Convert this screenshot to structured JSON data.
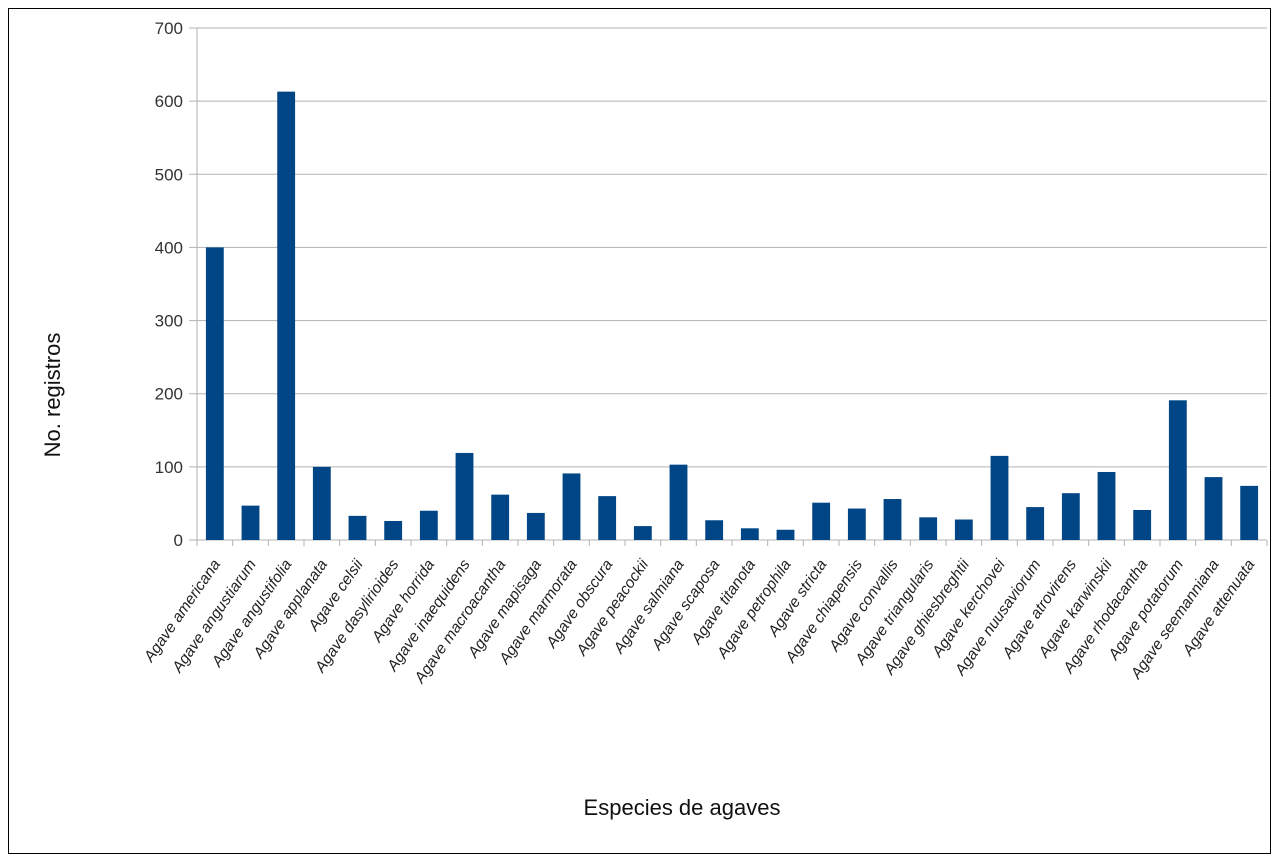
{
  "chart_data": {
    "type": "bar",
    "title": "",
    "xlabel": "Especies de agaves",
    "ylabel": "No. registros",
    "ylim": [
      0,
      700
    ],
    "yticks": [
      0,
      100,
      200,
      300,
      400,
      500,
      600,
      700
    ],
    "grid": true,
    "legend": "none",
    "bar_color": "#004586",
    "categories": [
      "Agave americana",
      "Agave angustiarum",
      "Agave angustifolia",
      "Agave applanata",
      "Agave celsii",
      "Agave dasylirioides",
      "Agave horrida",
      "Agave inaequidens",
      "Agave macroacantha",
      "Agave mapisaga",
      "Agave marmorata",
      "Agave obscura",
      "Agave peacockii",
      "Agave salmiana",
      "Agave scaposa",
      "Agave titanota",
      "Agave petrophila",
      "Agave stricta",
      "Agave chiapensis",
      "Agave convallis",
      "Agave triangularis",
      "Agave ghiesbreghtii",
      "Agave kerchovei",
      "Agave nuusaviorum",
      "Agave atrovirens",
      "Agave karwinskii",
      "Agave rhodacantha",
      "Agave potatorum",
      "Agave seemanniana",
      "Agave attenuata"
    ],
    "values": [
      400,
      47,
      613,
      100,
      33,
      26,
      40,
      119,
      62,
      37,
      91,
      60,
      19,
      103,
      27,
      16,
      14,
      51,
      43,
      56,
      31,
      28,
      115,
      45,
      64,
      93,
      41,
      191,
      86,
      74
    ]
  }
}
